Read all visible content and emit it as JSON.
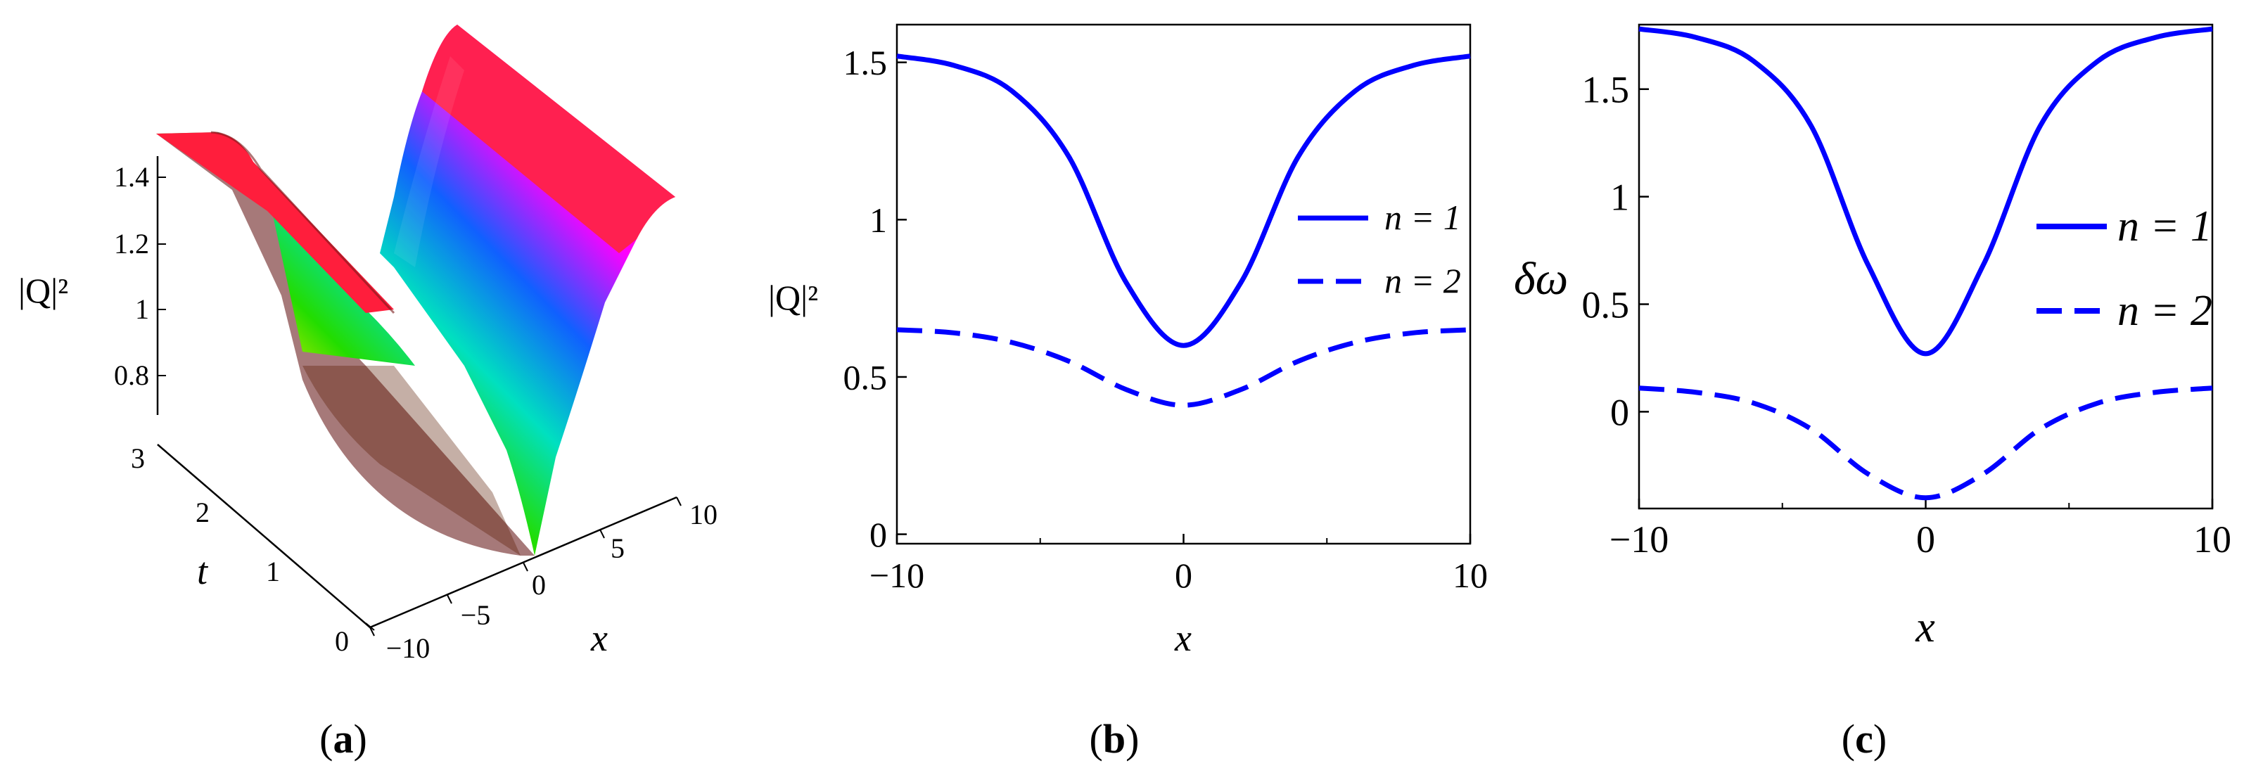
{
  "chart_data": [
    {
      "panel": "(a)",
      "type": "surface3d",
      "zlabel": "|Q|²",
      "xlabel": "x",
      "ylabel": "t",
      "x_ticks": [
        "−10",
        "−5",
        "0",
        "5",
        "10"
      ],
      "t_ticks": [
        "0",
        "1",
        "2",
        "3"
      ],
      "z_ticks": [
        "0.8",
        "1",
        "1.2",
        "1.4"
      ],
      "xlim": [
        -10,
        10
      ],
      "tlim": [
        0,
        3
      ],
      "zrange": [
        0.6,
        1.52
      ],
      "colormap": "rainbow"
    },
    {
      "panel": "(b)",
      "type": "line",
      "xlabel": "x",
      "ylabel": "|Q|²",
      "xlim": [
        -10,
        10
      ],
      "ylim": [
        -0.03,
        1.62
      ],
      "x_ticks": [
        "−10",
        "0",
        "10"
      ],
      "y_ticks": [
        "0",
        "0.5",
        "1",
        "1.5"
      ],
      "series": [
        {
          "name": "n = 1",
          "style": "solid",
          "color": "#0000ff",
          "x": [
            -10,
            -8,
            -6,
            -4,
            -2,
            0,
            2,
            4,
            6,
            8,
            10
          ],
          "y": [
            1.52,
            1.49,
            1.41,
            1.2,
            0.8,
            0.6,
            0.8,
            1.2,
            1.41,
            1.49,
            1.52
          ]
        },
        {
          "name": "n = 2",
          "style": "dashed",
          "color": "#0000ff",
          "x": [
            -10,
            -8,
            -6,
            -4,
            -2,
            0,
            2,
            4,
            6,
            8,
            10
          ],
          "y": [
            0.65,
            0.64,
            0.61,
            0.55,
            0.46,
            0.41,
            0.46,
            0.55,
            0.61,
            0.64,
            0.65
          ]
        }
      ],
      "legend": {
        "position": "right",
        "entries": [
          "n = 1",
          "n = 2"
        ]
      }
    },
    {
      "panel": "(c)",
      "type": "line",
      "xlabel": "x",
      "ylabel": "δω",
      "xlim": [
        -10,
        10
      ],
      "ylim": [
        -0.45,
        1.8
      ],
      "x_ticks": [
        "−10",
        "0",
        "10"
      ],
      "y_ticks": [
        "0",
        "0.5",
        "1",
        "1.5"
      ],
      "series": [
        {
          "name": "n = 1",
          "style": "solid",
          "color": "#0000ff",
          "x": [
            -10,
            -8,
            -6,
            -4,
            -2,
            0,
            2,
            4,
            6,
            8,
            10
          ],
          "y": [
            1.78,
            1.74,
            1.63,
            1.33,
            0.68,
            0.27,
            0.68,
            1.33,
            1.63,
            1.74,
            1.78
          ]
        },
        {
          "name": "n = 2",
          "style": "dashed",
          "color": "#0000ff",
          "x": [
            -10,
            -8,
            -6,
            -4,
            -2,
            0,
            2,
            4,
            6,
            8,
            10
          ],
          "y": [
            0.11,
            0.09,
            0.04,
            -0.08,
            -0.29,
            -0.4,
            -0.29,
            -0.08,
            0.04,
            0.09,
            0.11
          ]
        }
      ],
      "legend": {
        "position": "right",
        "entries": [
          "n = 1",
          "n = 2"
        ]
      }
    }
  ],
  "captions": {
    "a": "a",
    "b": "b",
    "c": "c"
  },
  "colors": {
    "curve": "#0000ff",
    "axis": "#000000"
  }
}
